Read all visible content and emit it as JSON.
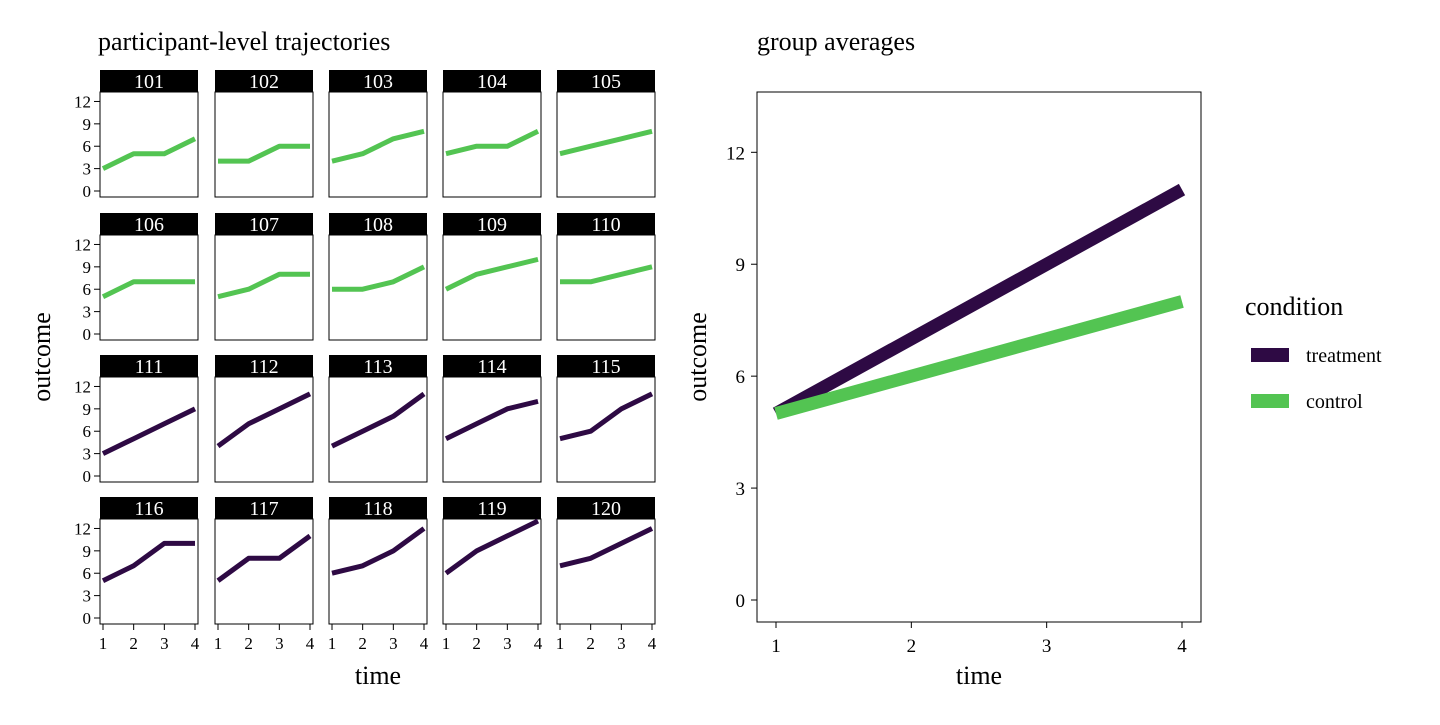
{
  "colors": {
    "treatment": "#2e0a44",
    "control": "#53c452",
    "strip_bg": "#000000",
    "strip_text": "#ffffff"
  },
  "chart_data": [
    {
      "type": "line",
      "facet": true,
      "title": "participant-level trajectories",
      "xlabel": "time",
      "ylabel": "outcome",
      "x": [
        1,
        2,
        3,
        4
      ],
      "x_ticks": [
        "1",
        "2",
        "3",
        "4"
      ],
      "y_ticks": [
        "0",
        "3",
        "6",
        "9",
        "12"
      ],
      "xlim": [
        1,
        4
      ],
      "ylim": [
        0,
        13
      ],
      "grid": false,
      "panels": [
        {
          "id": "101",
          "condition": "control",
          "values": [
            3,
            5,
            5,
            7
          ]
        },
        {
          "id": "102",
          "condition": "control",
          "values": [
            4,
            4,
            6,
            6
          ]
        },
        {
          "id": "103",
          "condition": "control",
          "values": [
            4,
            5,
            7,
            8
          ]
        },
        {
          "id": "104",
          "condition": "control",
          "values": [
            5,
            6,
            6,
            8
          ]
        },
        {
          "id": "105",
          "condition": "control",
          "values": [
            5,
            6,
            7,
            8
          ]
        },
        {
          "id": "106",
          "condition": "control",
          "values": [
            5,
            7,
            7,
            7
          ]
        },
        {
          "id": "107",
          "condition": "control",
          "values": [
            5,
            6,
            8,
            8
          ]
        },
        {
          "id": "108",
          "condition": "control",
          "values": [
            6,
            6,
            7,
            9
          ]
        },
        {
          "id": "109",
          "condition": "control",
          "values": [
            6,
            8,
            9,
            10
          ]
        },
        {
          "id": "110",
          "condition": "control",
          "values": [
            7,
            7,
            8,
            9
          ]
        },
        {
          "id": "111",
          "condition": "treatment",
          "values": [
            3,
            5,
            7,
            9
          ]
        },
        {
          "id": "112",
          "condition": "treatment",
          "values": [
            4,
            7,
            9,
            11
          ]
        },
        {
          "id": "113",
          "condition": "treatment",
          "values": [
            4,
            6,
            8,
            11
          ]
        },
        {
          "id": "114",
          "condition": "treatment",
          "values": [
            5,
            7,
            9,
            10
          ]
        },
        {
          "id": "115",
          "condition": "treatment",
          "values": [
            5,
            6,
            9,
            11
          ]
        },
        {
          "id": "116",
          "condition": "treatment",
          "values": [
            5,
            7,
            10,
            10
          ]
        },
        {
          "id": "117",
          "condition": "treatment",
          "values": [
            5,
            8,
            8,
            11
          ]
        },
        {
          "id": "118",
          "condition": "treatment",
          "values": [
            6,
            7,
            9,
            12
          ]
        },
        {
          "id": "119",
          "condition": "treatment",
          "values": [
            6,
            9,
            11,
            13
          ]
        },
        {
          "id": "120",
          "condition": "treatment",
          "values": [
            7,
            8,
            10,
            12
          ]
        }
      ]
    },
    {
      "type": "line",
      "title": "group averages",
      "xlabel": "time",
      "ylabel": "outcome",
      "x_ticks": [
        "1",
        "2",
        "3",
        "4"
      ],
      "y_ticks": [
        "0",
        "3",
        "6",
        "9",
        "12"
      ],
      "xlim": [
        1,
        4
      ],
      "ylim": [
        0,
        13
      ],
      "grid": false,
      "legend": {
        "title": "condition",
        "position": "right"
      },
      "series": [
        {
          "name": "treatment",
          "x": [
            1,
            4
          ],
          "values": [
            5,
            11
          ]
        },
        {
          "name": "control",
          "x": [
            1,
            4
          ],
          "values": [
            5,
            8
          ]
        }
      ]
    }
  ]
}
